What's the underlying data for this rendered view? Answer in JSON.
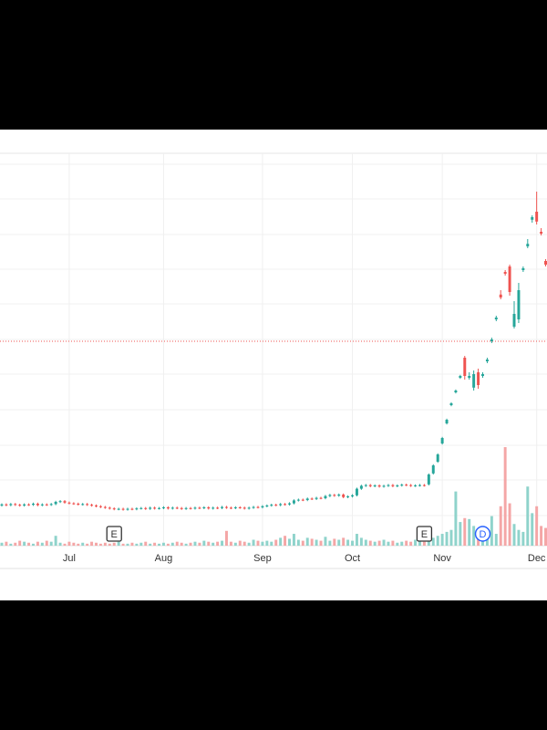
{
  "chart_data": {
    "type": "candlestick",
    "xlim": [
      -0.4,
      121.3
    ],
    "ylim": [
      0,
      100
    ],
    "volume_lim": [
      0,
      100
    ],
    "up_color": "#26a69a",
    "down_color": "#ef5350",
    "up_volume_color": "#8fd3cb",
    "down_volume_color": "#f4a6a6",
    "ref_line": 56,
    "ref_color": "#ef5350",
    "x_labels": [
      {
        "index": 15,
        "label": "Jul"
      },
      {
        "index": 36,
        "label": "Aug"
      },
      {
        "index": 58,
        "label": "Sep"
      },
      {
        "index": 78,
        "label": "Oct"
      },
      {
        "index": 98,
        "label": "Nov"
      },
      {
        "index": 119,
        "label": "Dec"
      }
    ],
    "events": [
      {
        "index": 25,
        "label": "E"
      },
      {
        "index": 94,
        "label": "E"
      },
      {
        "index": 107,
        "label": "D"
      }
    ],
    "open": [
      11.0,
      11.3,
      11.1,
      11.4,
      11.2,
      11.0,
      11.3,
      11.2,
      11.5,
      11.1,
      11.3,
      11.2,
      11.4,
      12.0,
      12.2,
      11.8,
      11.6,
      11.5,
      11.3,
      11.4,
      11.2,
      11.0,
      10.8,
      10.6,
      10.4,
      10.2,
      10.0,
      10.1,
      9.9,
      10.1,
      10.0,
      10.2,
      10.3,
      10.1,
      10.4,
      10.2,
      10.3,
      10.5,
      10.2,
      10.4,
      10.3,
      10.1,
      10.3,
      10.2,
      10.4,
      10.3,
      10.5,
      10.2,
      10.4,
      10.3,
      10.6,
      10.4,
      10.3,
      10.5,
      10.4,
      10.2,
      10.4,
      10.6,
      10.5,
      10.8,
      11.0,
      11.2,
      11.1,
      11.4,
      11.3,
      11.6,
      12.4,
      12.6,
      12.5,
      12.9,
      12.8,
      13.1,
      13.0,
      13.6,
      13.9,
      13.7,
      14.0,
      13.3,
      13.5,
      13.8,
      15.6,
      16.4,
      16.6,
      16.3,
      16.5,
      16.2,
      16.4,
      16.6,
      16.3,
      16.5,
      16.7,
      16.6,
      16.4,
      16.5,
      16.6,
      16.8,
      19.8,
      23,
      28,
      33.5,
      38.5,
      42,
      46,
      51.5,
      46,
      43.3,
      47.5,
      46.5,
      50.5,
      56,
      62,
      68.8,
      75,
      76.5,
      60,
      62,
      75.5,
      82,
      89.3,
      91.5,
      86,
      78
    ],
    "high": [
      11.6,
      11.6,
      11.7,
      11.7,
      11.5,
      11.6,
      11.6,
      11.8,
      11.8,
      11.6,
      11.6,
      11.7,
      12.3,
      12.5,
      12.5,
      12.1,
      11.9,
      11.8,
      11.7,
      11.7,
      11.5,
      11.3,
      11.1,
      10.9,
      10.7,
      10.5,
      10.4,
      10.4,
      10.4,
      10.4,
      10.5,
      10.6,
      10.6,
      10.7,
      10.7,
      10.6,
      10.8,
      10.8,
      10.7,
      10.7,
      10.6,
      10.6,
      10.6,
      10.7,
      10.7,
      10.8,
      10.8,
      10.7,
      10.7,
      10.9,
      10.9,
      10.7,
      10.8,
      10.8,
      10.7,
      10.7,
      10.9,
      10.9,
      11.1,
      11.3,
      11.5,
      11.5,
      11.7,
      11.7,
      11.9,
      12.7,
      12.9,
      12.9,
      13.2,
      13.2,
      13.4,
      13.4,
      13.9,
      14.2,
      14.2,
      14.3,
      14.3,
      13.8,
      14.1,
      15.9,
      16.7,
      16.9,
      16.9,
      16.8,
      16.8,
      16.7,
      16.9,
      16.9,
      16.8,
      17.0,
      17.0,
      16.9,
      16.8,
      16.9,
      16.9,
      19.8,
      22.3,
      25.3,
      29.8,
      34.8,
      39.3,
      42.8,
      46.8,
      52,
      47.5,
      48,
      48.5,
      47.5,
      51.5,
      57,
      63,
      70,
      75.5,
      77,
      67,
      72,
      76.5,
      84,
      90.5,
      97,
      87,
      78.5
    ],
    "low": [
      10.7,
      10.8,
      10.8,
      10.9,
      10.7,
      10.7,
      10.9,
      10.9,
      10.8,
      10.8,
      10.9,
      10.9,
      11.1,
      11.7,
      11.5,
      11.3,
      11.2,
      11.0,
      11.0,
      10.9,
      10.7,
      10.5,
      10.3,
      10.1,
      9.9,
      9.7,
      9.7,
      9.6,
      9.6,
      9.7,
      9.7,
      9.9,
      9.8,
      9.8,
      9.9,
      9.9,
      10.0,
      9.9,
      9.9,
      10.0,
      9.8,
      9.8,
      9.9,
      9.9,
      10.0,
      10.0,
      9.9,
      9.9,
      10.0,
      10.0,
      10.1,
      10.0,
      10.0,
      10.1,
      9.9,
      9.9,
      10.1,
      10.2,
      10.2,
      10.5,
      10.7,
      10.8,
      10.8,
      11.0,
      11.0,
      11.3,
      12.1,
      12.2,
      12.2,
      12.5,
      12.5,
      12.7,
      12.7,
      13.3,
      13.4,
      13.4,
      13.0,
      13.0,
      13.2,
      13.5,
      15.3,
      16.1,
      16.0,
      16.0,
      15.9,
      15.9,
      16.1,
      16.0,
      16.0,
      16.2,
      16.3,
      16.1,
      16.1,
      16.2,
      16.2,
      16.5,
      19.5,
      22.7,
      27.7,
      33.2,
      38.2,
      41.7,
      45.7,
      45.5,
      45.5,
      42.5,
      43,
      46,
      50,
      55.5,
      61.5,
      67.5,
      74,
      68.5,
      59.5,
      61,
      75,
      81.5,
      88.5,
      88,
      85,
      76.5
    ],
    "close": [
      11.3,
      11.1,
      11.4,
      11.2,
      11.0,
      11.3,
      11.2,
      11.5,
      11.1,
      11.3,
      11.2,
      11.4,
      12.0,
      12.2,
      11.8,
      11.6,
      11.5,
      11.3,
      11.4,
      11.2,
      11.0,
      10.8,
      10.6,
      10.4,
      10.2,
      10.0,
      10.1,
      9.9,
      10.1,
      10.0,
      10.2,
      10.3,
      10.1,
      10.4,
      10.2,
      10.3,
      10.5,
      10.2,
      10.4,
      10.3,
      10.1,
      10.3,
      10.2,
      10.4,
      10.3,
      10.5,
      10.2,
      10.4,
      10.3,
      10.6,
      10.4,
      10.3,
      10.5,
      10.4,
      10.2,
      10.4,
      10.6,
      10.5,
      10.8,
      11.0,
      11.2,
      11.1,
      11.4,
      11.3,
      11.6,
      12.4,
      12.6,
      12.5,
      12.9,
      12.8,
      13.1,
      13.0,
      13.6,
      13.9,
      13.7,
      14.0,
      13.3,
      13.5,
      13.8,
      15.6,
      16.4,
      16.6,
      16.3,
      16.5,
      16.2,
      16.4,
      16.6,
      16.3,
      16.5,
      16.7,
      16.6,
      16.4,
      16.5,
      16.6,
      16.5,
      19.5,
      22,
      25,
      29.5,
      34.5,
      39,
      42.5,
      46.5,
      46.5,
      46.5,
      47,
      44,
      47,
      51,
      56.5,
      62.5,
      68,
      74.5,
      69.5,
      63.5,
      70,
      76,
      82.7,
      90,
      88.8,
      85.5,
      77
    ],
    "volume": [
      3,
      4,
      2,
      3,
      5,
      4,
      3,
      2,
      4,
      3,
      5,
      4,
      10,
      3,
      2,
      4,
      3,
      2,
      3,
      2,
      4,
      3,
      2,
      3,
      2,
      3,
      4,
      2,
      2,
      3,
      2,
      3,
      4,
      2,
      3,
      2,
      3,
      2,
      3,
      4,
      3,
      2,
      3,
      4,
      3,
      5,
      4,
      3,
      4,
      5,
      15,
      4,
      3,
      5,
      4,
      3,
      6,
      5,
      4,
      5,
      4,
      6,
      8,
      10,
      7,
      12,
      6,
      5,
      8,
      7,
      6,
      5,
      9,
      5,
      7,
      6,
      8,
      6,
      5,
      12,
      8,
      6,
      5,
      4,
      5,
      6,
      4,
      5,
      3,
      4,
      5,
      4,
      6,
      5,
      4,
      6,
      8,
      10,
      12,
      14,
      16,
      55,
      24,
      28,
      27,
      20,
      17,
      20,
      16,
      30,
      12,
      40,
      100,
      43,
      22,
      16,
      14,
      60,
      33,
      40,
      20,
      18
    ]
  }
}
